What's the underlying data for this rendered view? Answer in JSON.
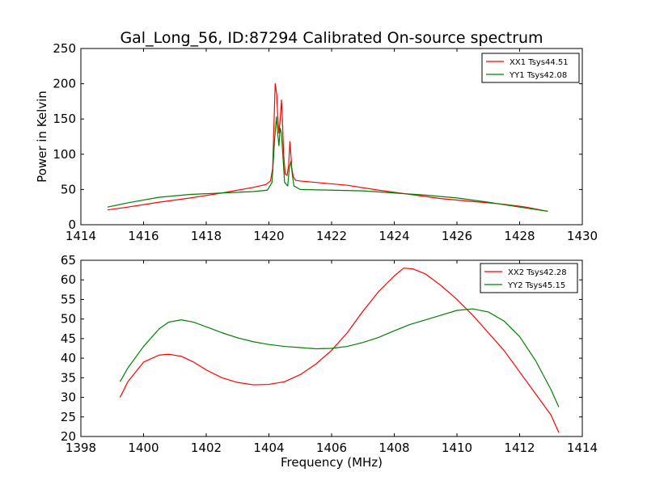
{
  "title": "Gal_Long_56, ID:87294 Calibrated On-source spectrum",
  "xlabel": "Frequency (MHz)",
  "chart_data": [
    {
      "type": "line",
      "ylabel": "Power in Kelvin",
      "xlim": [
        1414,
        1430
      ],
      "ylim": [
        0,
        250
      ],
      "xticks": [
        1414,
        1416,
        1418,
        1420,
        1422,
        1424,
        1426,
        1428,
        1430
      ],
      "yticks": [
        0,
        50,
        100,
        150,
        200,
        250
      ],
      "legend_position": "top-right",
      "series": [
        {
          "name": "XX1 Tsys44.51",
          "color": "#ff0000",
          "x": [
            1414.85,
            1415.5,
            1416.5,
            1417.5,
            1418.5,
            1419.5,
            1419.9,
            1420.05,
            1420.12,
            1420.2,
            1420.25,
            1420.28,
            1420.32,
            1420.36,
            1420.4,
            1420.43,
            1420.47,
            1420.52,
            1420.58,
            1420.63,
            1420.67,
            1420.7,
            1420.73,
            1420.78,
            1420.85,
            1421.0,
            1421.5,
            1422.5,
            1423.5,
            1424.5,
            1425.5,
            1426.5,
            1427.5,
            1428.2,
            1428.9
          ],
          "y": [
            21,
            25,
            32,
            38,
            45,
            53,
            57,
            62,
            80,
            200,
            185,
            155,
            130,
            150,
            177,
            150,
            100,
            72,
            70,
            85,
            118,
            100,
            80,
            68,
            63,
            62,
            60,
            56,
            49,
            43,
            37,
            33,
            29,
            25,
            19
          ]
        },
        {
          "name": "YY1 Tsys42.08",
          "color": "#008000",
          "x": [
            1414.85,
            1415.5,
            1416.5,
            1417.5,
            1418.5,
            1419.5,
            1419.95,
            1420.1,
            1420.18,
            1420.24,
            1420.28,
            1420.32,
            1420.36,
            1420.4,
            1420.45,
            1420.5,
            1420.6,
            1420.65,
            1420.7,
            1420.75,
            1420.8,
            1421.0,
            1422.0,
            1423.0,
            1424.0,
            1425.0,
            1426.0,
            1427.0,
            1428.0,
            1428.9
          ],
          "y": [
            25,
            31,
            39,
            43,
            45,
            47,
            49,
            60,
            120,
            153,
            130,
            112,
            137,
            130,
            95,
            60,
            55,
            80,
            90,
            70,
            55,
            50,
            49,
            48,
            45,
            42,
            38,
            32,
            25,
            19
          ]
        }
      ]
    },
    {
      "type": "line",
      "ylabel": "",
      "xlim": [
        1398,
        1414
      ],
      "ylim": [
        20,
        65
      ],
      "xticks": [
        1398,
        1400,
        1402,
        1404,
        1406,
        1408,
        1410,
        1412,
        1414
      ],
      "yticks": [
        20,
        25,
        30,
        35,
        40,
        45,
        50,
        55,
        60,
        65
      ],
      "legend_position": "top-right",
      "series": [
        {
          "name": "XX2 Tsys42.28",
          "color": "#ff0000",
          "x": [
            1399.25,
            1399.5,
            1400.0,
            1400.5,
            1400.8,
            1401.2,
            1401.6,
            1402.0,
            1402.5,
            1403.0,
            1403.5,
            1404.0,
            1404.5,
            1405.0,
            1405.5,
            1406.0,
            1406.5,
            1407.0,
            1407.5,
            1408.0,
            1408.3,
            1408.6,
            1409.0,
            1409.5,
            1410.0,
            1410.5,
            1411.0,
            1411.5,
            1412.0,
            1412.5,
            1413.0,
            1413.25
          ],
          "y": [
            30,
            34,
            39,
            40.8,
            41,
            40.5,
            39,
            37,
            35,
            33.8,
            33.2,
            33.3,
            34,
            35.8,
            38.5,
            42,
            46.5,
            52,
            57,
            61,
            63,
            62.8,
            61.5,
            58.5,
            55,
            51,
            46.5,
            42,
            36.5,
            31,
            25.5,
            21
          ]
        },
        {
          "name": "YY2 Tsys45.15",
          "color": "#008000",
          "x": [
            1399.25,
            1399.5,
            1400.0,
            1400.5,
            1400.8,
            1401.2,
            1401.6,
            1402.0,
            1402.5,
            1403.0,
            1403.5,
            1404.0,
            1404.5,
            1405.0,
            1405.5,
            1406.0,
            1406.5,
            1407.0,
            1407.5,
            1408.0,
            1408.5,
            1409.0,
            1409.5,
            1410.0,
            1410.5,
            1411.0,
            1411.5,
            1412.0,
            1412.5,
            1413.0,
            1413.25
          ],
          "y": [
            34,
            37.5,
            43,
            47.5,
            49.2,
            49.8,
            49.2,
            48,
            46.5,
            45.2,
            44.2,
            43.5,
            43,
            42.7,
            42.4,
            42.5,
            43,
            44,
            45.3,
            47,
            48.6,
            49.8,
            51,
            52.2,
            52.6,
            51.8,
            49.5,
            45.5,
            39.5,
            32,
            27.5
          ]
        }
      ]
    }
  ]
}
